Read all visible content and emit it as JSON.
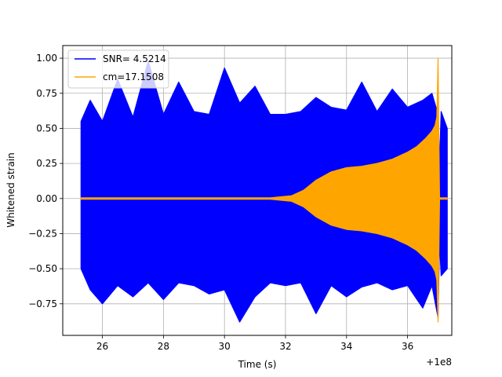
{
  "chart_data": {
    "type": "line",
    "title": "",
    "xlabel": "Time (s)",
    "ylabel": "Whitened strain",
    "x_offset_label": "+1e8",
    "xlim": [
      24.7,
      37.45
    ],
    "ylim": [
      -0.975,
      1.09
    ],
    "x_ticks": [
      26,
      28,
      30,
      32,
      34,
      36
    ],
    "x_tick_labels": [
      "26",
      "28",
      "30",
      "32",
      "34",
      "36"
    ],
    "y_ticks": [
      -0.75,
      -0.5,
      -0.25,
      0.0,
      0.25,
      0.5,
      0.75,
      1.0
    ],
    "y_tick_labels": [
      "−0.75",
      "−0.50",
      "−0.25",
      "0.00",
      "0.25",
      "0.50",
      "0.75",
      "1.00"
    ],
    "grid": true,
    "legend_position": "top-left",
    "series": [
      {
        "name": "SNR= 4.5214",
        "color": "#0000ff",
        "x": [
          25.3,
          25.6,
          26.0,
          26.5,
          27.0,
          27.5,
          28.0,
          28.5,
          29.0,
          29.5,
          30.0,
          30.5,
          31.0,
          31.5,
          32.0,
          32.5,
          33.0,
          33.5,
          34.0,
          34.5,
          35.0,
          35.5,
          36.0,
          36.5,
          36.8,
          37.0,
          37.05,
          37.1,
          37.3
        ],
        "upper": [
          0.55,
          0.7,
          0.55,
          0.85,
          0.58,
          0.98,
          0.6,
          0.83,
          0.62,
          0.6,
          0.93,
          0.68,
          0.8,
          0.6,
          0.6,
          0.62,
          0.72,
          0.65,
          0.63,
          0.83,
          0.62,
          0.78,
          0.65,
          0.7,
          0.75,
          0.6,
          0.25,
          0.62,
          0.5
        ],
        "lower": [
          -0.5,
          -0.65,
          -0.75,
          -0.62,
          -0.7,
          -0.6,
          -0.72,
          -0.6,
          -0.62,
          -0.68,
          -0.65,
          -0.88,
          -0.7,
          -0.6,
          -0.62,
          -0.6,
          -0.82,
          -0.62,
          -0.7,
          -0.63,
          -0.6,
          -0.65,
          -0.62,
          -0.78,
          -0.62,
          -0.85,
          -0.3,
          -0.55,
          -0.5
        ]
      },
      {
        "name": "cm=17.1508",
        "color": "#ffa500",
        "x": [
          25.3,
          31.5,
          32.2,
          32.6,
          33.0,
          33.5,
          34.0,
          34.5,
          35.0,
          35.5,
          36.0,
          36.3,
          36.6,
          36.8,
          36.9,
          36.96,
          37.0,
          37.05,
          37.3
        ],
        "upper": [
          0.005,
          0.005,
          0.02,
          0.06,
          0.13,
          0.19,
          0.22,
          0.23,
          0.25,
          0.28,
          0.33,
          0.37,
          0.43,
          0.48,
          0.52,
          0.58,
          1.0,
          0.005,
          0.005
        ],
        "lower": [
          -0.005,
          -0.005,
          -0.02,
          -0.06,
          -0.13,
          -0.19,
          -0.22,
          -0.23,
          -0.25,
          -0.28,
          -0.33,
          -0.37,
          -0.43,
          -0.48,
          -0.52,
          -0.58,
          -0.88,
          -0.005,
          -0.005
        ]
      }
    ]
  }
}
